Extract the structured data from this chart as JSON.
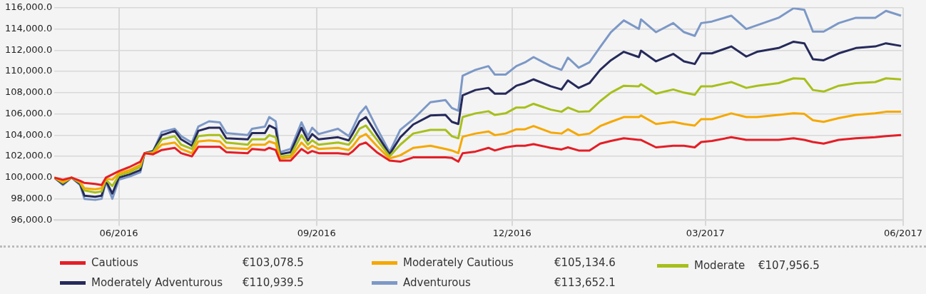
{
  "chart_data": {
    "type": "line",
    "x": [
      "2016-05-02",
      "2016-05-06",
      "2016-05-10",
      "2016-05-14",
      "2016-05-16",
      "2016-05-21",
      "2016-05-24",
      "2016-05-26",
      "2016-05-29",
      "2016-06-01",
      "2016-06-06",
      "2016-06-11",
      "2016-06-13",
      "2016-06-17",
      "2016-06-21",
      "2016-06-27",
      "2016-06-30",
      "2016-07-05",
      "2016-07-08",
      "2016-07-13",
      "2016-07-18",
      "2016-07-21",
      "2016-07-31",
      "2016-08-02",
      "2016-08-08",
      "2016-08-10",
      "2016-08-13",
      "2016-08-15",
      "2016-08-20",
      "2016-08-25",
      "2016-08-28",
      "2016-08-30",
      "2016-09-02",
      "2016-09-11",
      "2016-09-16",
      "2016-09-18",
      "2016-09-21",
      "2016-09-24",
      "2016-09-29",
      "2016-10-05",
      "2016-10-10",
      "2016-10-16",
      "2016-10-24",
      "2016-10-31",
      "2016-11-03",
      "2016-11-06",
      "2016-11-08",
      "2016-11-14",
      "2016-11-20",
      "2016-11-23",
      "2016-11-28",
      "2016-12-03",
      "2016-12-07",
      "2016-12-11",
      "2016-12-19",
      "2016-12-24",
      "2016-12-27",
      "2017-01-01",
      "2017-01-06",
      "2017-01-11",
      "2017-01-16",
      "2017-01-22",
      "2017-01-29",
      "2017-01-30",
      "2017-02-06",
      "2017-02-14",
      "2017-02-19",
      "2017-02-24",
      "2017-02-27",
      "2017-03-04",
      "2017-03-13",
      "2017-03-20",
      "2017-03-25",
      "2017-04-04",
      "2017-04-11",
      "2017-04-16",
      "2017-04-20",
      "2017-04-25",
      "2017-05-02",
      "2017-05-10",
      "2017-05-19",
      "2017-05-24",
      "2017-05-31"
    ],
    "series": [
      {
        "name": "Cautious",
        "color": "#e41e26",
        "values": [
          100000,
          99800,
          100000,
          99700,
          99500,
          99400,
          99300,
          100000,
          100300,
          100600,
          101000,
          101500,
          102300,
          102200,
          102600,
          102800,
          102300,
          102000,
          102900,
          102900,
          102900,
          102400,
          102300,
          102700,
          102600,
          102800,
          102600,
          101600,
          101600,
          102700,
          102300,
          102500,
          102300,
          102300,
          102200,
          102500,
          103100,
          103300,
          102400,
          101600,
          101500,
          101900,
          101900,
          101900,
          101850,
          101500,
          102300,
          102450,
          102800,
          102550,
          102850,
          103000,
          103000,
          103150,
          102800,
          102650,
          102850,
          102550,
          102550,
          103200,
          103450,
          103700,
          103550,
          103550,
          102850,
          103000,
          103000,
          102850,
          103350,
          103450,
          103800,
          103550,
          103550,
          103550,
          103700,
          103550,
          103350,
          103200,
          103550,
          103700,
          103800,
          103900,
          104000
        ]
      },
      {
        "name": "Moderately Cautious",
        "color": "#f5a800",
        "values": [
          100000,
          99600,
          100000,
          99600,
          99000,
          98900,
          99000,
          99900,
          99800,
          100400,
          100700,
          101200,
          102300,
          102300,
          103100,
          103300,
          102700,
          102300,
          103400,
          103500,
          103400,
          102800,
          102700,
          103100,
          103100,
          103400,
          103200,
          101800,
          101900,
          103300,
          102700,
          103000,
          102700,
          102800,
          102600,
          103000,
          103800,
          104100,
          103000,
          101800,
          102100,
          102800,
          103000,
          102700,
          102550,
          102300,
          103850,
          104150,
          104350,
          104000,
          104150,
          104550,
          104550,
          104850,
          104250,
          104150,
          104550,
          104000,
          104150,
          104850,
          105250,
          105700,
          105700,
          105850,
          105050,
          105250,
          105050,
          104900,
          105500,
          105500,
          106050,
          105700,
          105700,
          105900,
          106050,
          106000,
          105400,
          105250,
          105600,
          105900,
          106050,
          106200,
          106200
        ]
      },
      {
        "name": "Moderate",
        "color": "#a8bf1c",
        "values": [
          100000,
          99500,
          100000,
          99500,
          98800,
          98600,
          98700,
          99800,
          99200,
          100200,
          100500,
          101000,
          102300,
          102400,
          103600,
          103900,
          103100,
          102700,
          103900,
          104000,
          104000,
          103300,
          103100,
          103600,
          103600,
          104000,
          103800,
          102000,
          102100,
          104000,
          103100,
          103500,
          103100,
          103300,
          103100,
          103600,
          104600,
          104900,
          103600,
          102000,
          103100,
          104150,
          104500,
          104500,
          103900,
          103700,
          105700,
          106050,
          106250,
          105900,
          106050,
          106600,
          106600,
          106950,
          106400,
          106200,
          106600,
          106200,
          106250,
          107200,
          108000,
          108650,
          108600,
          108800,
          107900,
          108300,
          108000,
          107800,
          108600,
          108600,
          109000,
          108450,
          108650,
          108900,
          109350,
          109300,
          108250,
          108100,
          108650,
          108900,
          109000,
          109350,
          109250
        ]
      },
      {
        "name": "Moderately Adventurous",
        "color": "#262a5a",
        "values": [
          100000,
          99400,
          100000,
          99400,
          98300,
          98200,
          98300,
          99700,
          98500,
          100000,
          100300,
          100700,
          102300,
          102500,
          104000,
          104400,
          103600,
          103000,
          104400,
          104700,
          104700,
          103700,
          103600,
          104200,
          104200,
          104900,
          104600,
          102200,
          102400,
          104700,
          103500,
          104100,
          103600,
          103800,
          103500,
          104200,
          105300,
          105700,
          104100,
          102200,
          103800,
          105000,
          105850,
          105900,
          105250,
          105050,
          107750,
          108250,
          108450,
          107900,
          107900,
          108650,
          108900,
          109250,
          108600,
          108300,
          109150,
          108450,
          108900,
          110150,
          111050,
          111850,
          111350,
          111950,
          110950,
          111650,
          110950,
          110700,
          111700,
          111700,
          112350,
          111400,
          111850,
          112200,
          112800,
          112650,
          111150,
          111050,
          111700,
          112200,
          112350,
          112650,
          112400
        ]
      },
      {
        "name": "Adventurous",
        "color": "#7c98c6",
        "values": [
          100000,
          99300,
          100000,
          99300,
          98000,
          97900,
          98000,
          99600,
          98000,
          99800,
          100100,
          100500,
          102300,
          102500,
          104300,
          104600,
          103900,
          103300,
          104800,
          105300,
          105200,
          104200,
          104000,
          104600,
          104800,
          105700,
          105300,
          102400,
          102700,
          105200,
          103900,
          104700,
          104100,
          104600,
          103900,
          104700,
          106000,
          106700,
          104700,
          102400,
          104500,
          105500,
          107100,
          107300,
          106550,
          106300,
          109600,
          110150,
          110500,
          109700,
          109700,
          110500,
          110850,
          111350,
          110500,
          110150,
          111300,
          110350,
          110850,
          112300,
          113700,
          114800,
          114000,
          114900,
          113700,
          114550,
          113700,
          113350,
          114550,
          114700,
          115250,
          114000,
          114350,
          115050,
          115950,
          115800,
          113750,
          113750,
          114550,
          115050,
          115050,
          115700,
          115250
        ]
      }
    ],
    "annotations": [
      "€103,078.5",
      "€105,134.6",
      "€107,956.5",
      "€110,939.5",
      "€113,652.1"
    ],
    "xlim": [
      "2016-05-02",
      "2017-06-01"
    ],
    "xticks": [
      {
        "value": "2016-06-01",
        "label": "06/2016"
      },
      {
        "value": "2016-09-01",
        "label": "09/2016"
      },
      {
        "value": "2016-12-01",
        "label": "12/2016"
      },
      {
        "value": "2017-03-01",
        "label": "03/2017"
      },
      {
        "value": "2017-06-01",
        "label": "06/2017"
      }
    ],
    "ylim": [
      96000,
      116000
    ],
    "yticks": [
      {
        "value": 96000,
        "label": "96,000.0"
      },
      {
        "value": 98000,
        "label": "98,000.0"
      },
      {
        "value": 100000,
        "label": "100,000.0"
      },
      {
        "value": 102000,
        "label": "102,000.0"
      },
      {
        "value": 104000,
        "label": "104,000.0"
      },
      {
        "value": 106000,
        "label": "106,000.0"
      },
      {
        "value": 108000,
        "label": "108,000.0"
      },
      {
        "value": 110000,
        "label": "110,000.0"
      },
      {
        "value": 112000,
        "label": "112,000.0"
      },
      {
        "value": 114000,
        "label": "114,000.0"
      },
      {
        "value": 116000,
        "label": "116,000.0"
      }
    ],
    "grid": true,
    "legend": "bottom",
    "marker": "none",
    "line_style": "solid"
  }
}
